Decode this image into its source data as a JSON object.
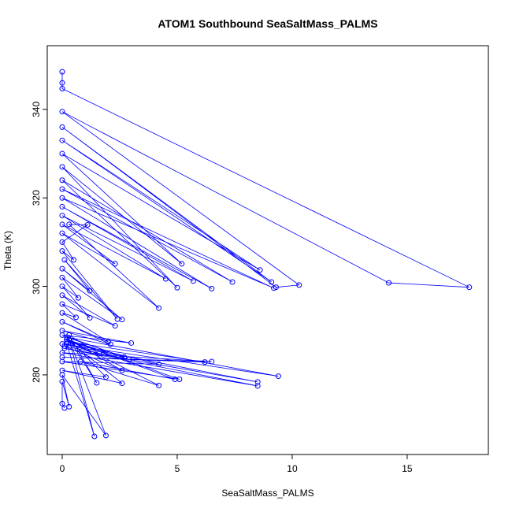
{
  "chart_data": {
    "type": "line",
    "markers": true,
    "color": "#0000ff",
    "title": "ATOM1 Southbound SeaSaltMass_PALMS",
    "x_label": "SeaSaltMass_PALMS",
    "y_label": "Theta (K)",
    "xlim": [
      -0.65,
      18.53
    ],
    "ylim": [
      262.0,
      354.4
    ],
    "xticks": [
      0,
      5,
      10,
      15
    ],
    "yticks": [
      280,
      300,
      320,
      340
    ],
    "x": [
      0,
      0,
      0,
      17.7,
      14.2,
      0,
      10.3,
      9.3,
      0,
      9.1,
      0,
      8.6,
      0,
      5.2,
      0,
      5.0,
      0,
      7.4,
      0,
      9.2,
      0,
      6.5,
      0,
      5.7,
      0,
      4.5,
      0,
      2.3,
      0,
      4.2,
      0.3,
      1.1,
      0,
      0.5,
      0,
      2.4,
      0.1,
      1.2,
      0,
      2.6,
      0,
      0.7,
      0,
      1.2,
      0,
      2.3,
      0,
      0.6,
      0,
      2.0,
      0,
      2.1,
      0,
      3.0,
      0,
      2.7,
      0.2,
      9.4,
      0,
      8.5,
      0.1,
      8.5,
      0,
      6.5,
      0,
      6.2,
      0.2,
      4.2,
      0,
      5.1,
      0.2,
      4.9,
      0.8,
      4.2,
      0.3,
      2.6,
      0.1,
      2.9,
      0.2,
      2.6,
      0,
      1.9,
      0.3,
      1.5,
      0.3,
      1.6,
      0.2,
      1.4,
      0.3,
      1.9,
      0,
      0.3,
      0,
      0,
      0.1
    ],
    "values": [
      348.5,
      346,
      344.7,
      299.8,
      300.8,
      339.5,
      300.3,
      299.8,
      336,
      301.0,
      333,
      303.7,
      330,
      305.1,
      327,
      299.7,
      324,
      301.0,
      322,
      299.6,
      320,
      299.5,
      318,
      301.2,
      316,
      301.7,
      314,
      305.1,
      312,
      295.1,
      314,
      313.9,
      310,
      306,
      308,
      292.6,
      306,
      299,
      304,
      292.5,
      302,
      297.4,
      300,
      292.9,
      298,
      291.1,
      296,
      293,
      294,
      287.5,
      292,
      286.9,
      290,
      287.2,
      289,
      284.0,
      288.5,
      279.7,
      287,
      278.4,
      286,
      277.5,
      285,
      283.0,
      284,
      282.9,
      287.5,
      282.4,
      283,
      279.0,
      288,
      279.0,
      283.0,
      277.6,
      287.9,
      281.0,
      286.5,
      283.5,
      288,
      278.1,
      281,
      279.5,
      288,
      278.2,
      289,
      284.8,
      287,
      266.1,
      288,
      266.3,
      280,
      272.8,
      278.5,
      273.5,
      272.5
    ]
  }
}
